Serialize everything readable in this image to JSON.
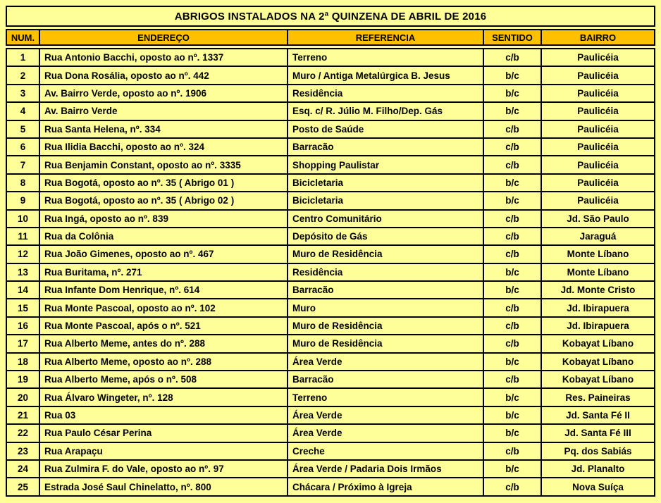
{
  "title": "ABRIGOS INSTALADOS NA 2ª QUINZENA DE ABRIL DE 2016",
  "colors": {
    "page_bg": "#FFFF99",
    "header_bg": "#FFC000",
    "row_bg": "#FFFF99",
    "border": "#000000",
    "text": "#000000"
  },
  "table": {
    "headers": [
      "NUM.",
      "ENDEREÇO",
      "REFERENCIA",
      "SENTIDO",
      "BAIRRO"
    ],
    "column_keys": [
      "num",
      "endereco",
      "referencia",
      "sentido",
      "bairro"
    ],
    "rows": [
      [
        "1",
        "Rua Antonio Bacchi, oposto ao nº. 1337",
        "Terreno",
        "c/b",
        "Paulicéia"
      ],
      [
        "2",
        "Rua Dona Rosália, oposto ao nº. 442",
        "Muro / Antiga Metalúrgica B. Jesus",
        "b/c",
        "Paulicéia"
      ],
      [
        "3",
        "Av. Bairro Verde, oposto ao nº. 1906",
        "Residência",
        "b/c",
        "Paulicéia"
      ],
      [
        "4",
        "Av. Bairro Verde",
        "Esq. c/ R. Júlio M. Filho/Dep. Gás",
        "b/c",
        "Paulicéia"
      ],
      [
        "5",
        "Rua Santa Helena, nº. 334",
        "Posto de Saúde",
        "c/b",
        "Paulicéia"
      ],
      [
        "6",
        "Rua Ilidia Bacchi, oposto ao nº. 324",
        "Barracão",
        "c/b",
        "Paulicéia"
      ],
      [
        "7",
        "Rua Benjamin Constant, oposto ao nº. 3335",
        "Shopping Paulistar",
        "c/b",
        "Paulicéia"
      ],
      [
        "8",
        "Rua Bogotá, oposto ao nº. 35 ( Abrigo 01 )",
        "Bicicletaria",
        "b/c",
        "Paulicéia"
      ],
      [
        "9",
        "Rua Bogotá, oposto ao nº. 35 ( Abrigo 02 )",
        "Bicicletaria",
        "b/c",
        "Paulicéia"
      ],
      [
        "10",
        "Rua Ingá, oposto ao nº. 839",
        "Centro Comunitário",
        "c/b",
        "Jd. São Paulo"
      ],
      [
        "11",
        "Rua da Colônia",
        "Depósito de Gás",
        "c/b",
        "Jaraguá"
      ],
      [
        "12",
        "Rua João Gimenes, oposto ao nº. 467",
        "Muro de Residência",
        "c/b",
        "Monte Líbano"
      ],
      [
        "13",
        "Rua Buritama, nº. 271",
        "Residência",
        "b/c",
        "Monte Líbano"
      ],
      [
        "14",
        "Rua Infante Dom Henrique, nº. 614",
        "Barracão",
        "b/c",
        "Jd. Monte Cristo"
      ],
      [
        "15",
        "Rua Monte Pascoal, oposto ao nº. 102",
        "Muro",
        "c/b",
        "Jd. Ibirapuera"
      ],
      [
        "16",
        "Rua Monte Pascoal, após o nº. 521",
        "Muro de Residência",
        "c/b",
        "Jd. Ibirapuera"
      ],
      [
        "17",
        "Rua Alberto Meme, antes do nº. 288",
        "Muro de Residência",
        "c/b",
        "Kobayat Líbano"
      ],
      [
        "18",
        "Rua Alberto Meme, oposto ao nº. 288",
        "Área Verde",
        "b/c",
        "Kobayat Líbano"
      ],
      [
        "19",
        "Rua Alberto Meme, após o  nº. 508",
        "Barracão",
        "c/b",
        "Kobayat Líbano"
      ],
      [
        "20",
        "Rua Álvaro Wingeter, nº. 128",
        "Terreno",
        "b/c",
        "Res. Paineiras"
      ],
      [
        "21",
        "Rua 03",
        "Área Verde",
        "b/c",
        "Jd. Santa Fé II"
      ],
      [
        "22",
        "Rua Paulo César Perina",
        "Área Verde",
        "b/c",
        "Jd. Santa Fé III"
      ],
      [
        "23",
        "Rua Arapaçu",
        "Creche",
        "c/b",
        "Pq. dos Sabiás"
      ],
      [
        "24",
        "Rua Zulmira F. do Vale, oposto ao nº. 97",
        "Área Verde / Padaria Dois Irmãos",
        "b/c",
        "Jd. Planalto"
      ],
      [
        "25",
        "Estrada José Saul Chinelatto, nº. 800",
        "Chácara / Próximo à Igreja",
        "c/b",
        "Nova Suíça"
      ]
    ]
  }
}
